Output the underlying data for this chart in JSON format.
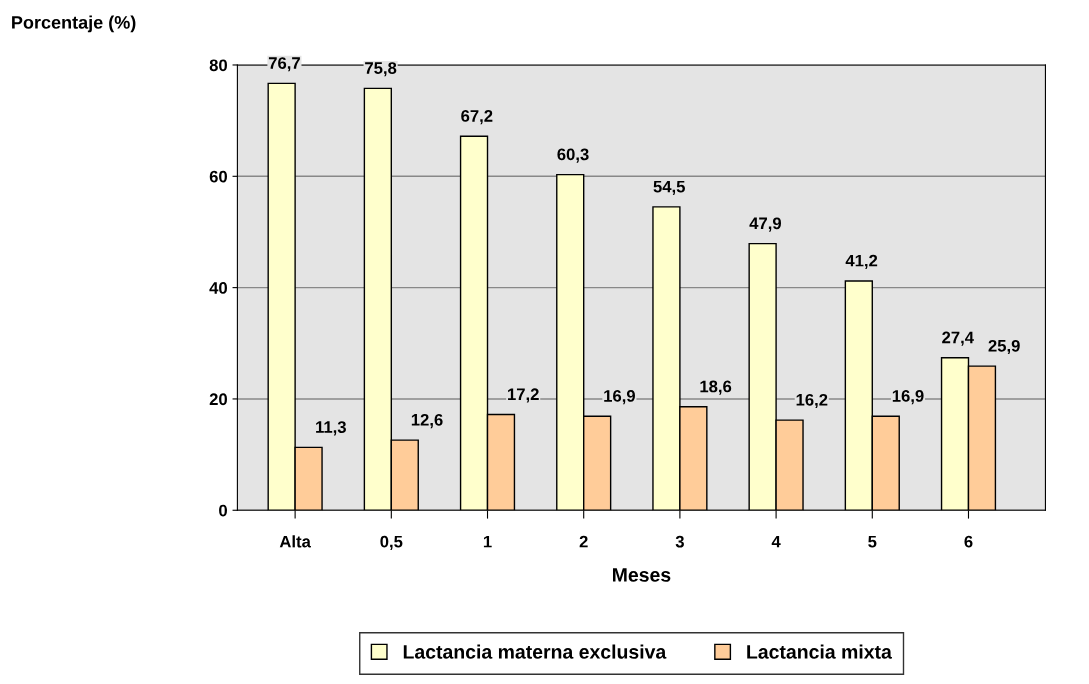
{
  "chart_data": {
    "type": "bar",
    "ylabel": "Porcentaje (%)",
    "xlabel": "Meses",
    "categories": [
      "Alta",
      "0,5",
      "1",
      "2",
      "3",
      "4",
      "5",
      "6"
    ],
    "series": [
      {
        "name": "Lactancia materna exclusiva",
        "color": "#ffffcc",
        "values": [
          76.7,
          75.8,
          67.2,
          60.3,
          54.5,
          47.9,
          41.2,
          27.4
        ],
        "value_labels": [
          "76,7",
          "75,8",
          "67,2",
          "60,3",
          "54,5",
          "47,9",
          "41,2",
          "27,4"
        ]
      },
      {
        "name": "Lactancia mixta",
        "color": "#ffcc99",
        "values": [
          11.3,
          12.6,
          17.2,
          16.9,
          18.6,
          16.2,
          16.9,
          25.9
        ],
        "value_labels": [
          "11,3",
          "12,6",
          "17,2",
          "16,9",
          "18,6",
          "16,2",
          "16,9",
          "25,9"
        ]
      }
    ],
    "ylim": [
      0,
      80
    ],
    "yticks": [
      0,
      20,
      40,
      60,
      80
    ],
    "grid": "y",
    "legend": "bottom"
  }
}
